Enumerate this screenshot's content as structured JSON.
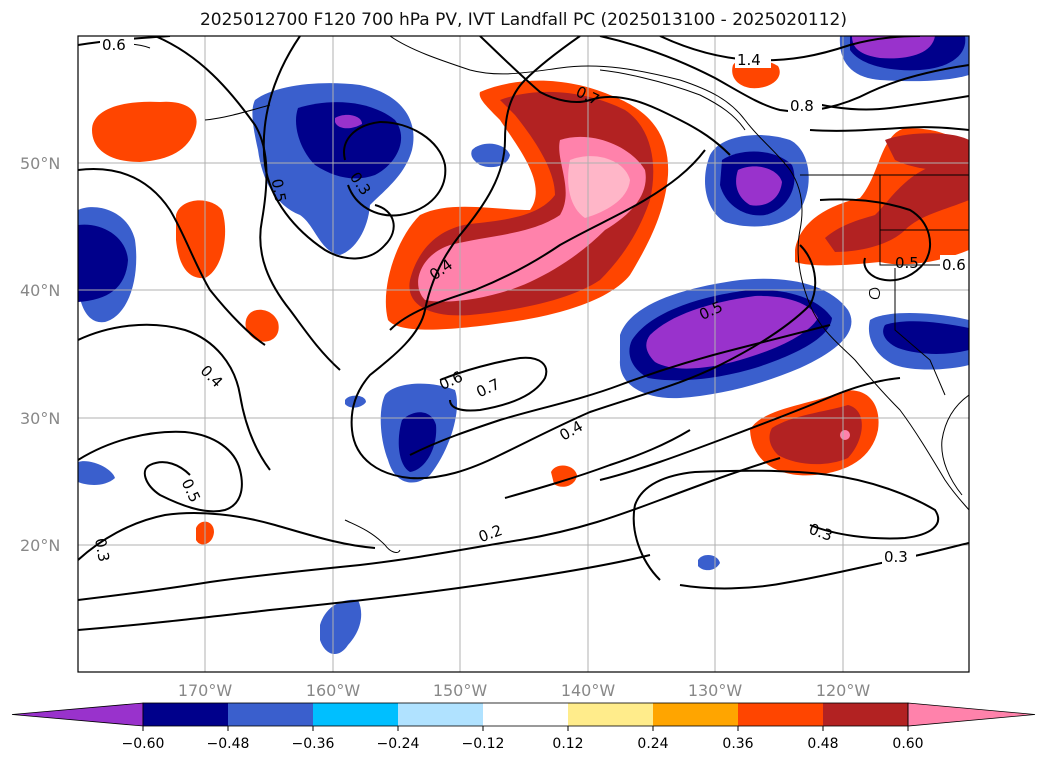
{
  "title": "2025012700 F120 700 hPa PV, IVT Landfall PC (2025013100 - 2025020112)",
  "lat_labels": [
    "50°N",
    "40°N",
    "30°N",
    "20°N"
  ],
  "lon_labels": [
    "170°W",
    "160°W",
    "150°W",
    "140°W",
    "130°W",
    "120°W"
  ],
  "colorbar": {
    "ticks": [
      "−0.60",
      "−0.48",
      "−0.36",
      "−0.24",
      "−0.12",
      "0.12",
      "0.24",
      "0.36",
      "0.48",
      "0.60"
    ],
    "colors": [
      "#9932cc",
      "#00008b",
      "#3a5fcd",
      "#00bfff",
      "#b0e2ff",
      "#ffffff",
      "#ffec8b",
      "#ffa500",
      "#ff4500",
      "#b22222",
      "#ff82ab"
    ],
    "extend": "both"
  },
  "contour_labels": [
    "0.6",
    "1.4",
    "0.8",
    "0.7",
    "0.5",
    "0.3",
    "0.4",
    "0.5",
    "0.6",
    "0.5",
    "0.4",
    "0.6",
    "0.7",
    "0.5",
    "0.4",
    "0.2",
    "0.3",
    "0.3",
    "0.3"
  ]
}
